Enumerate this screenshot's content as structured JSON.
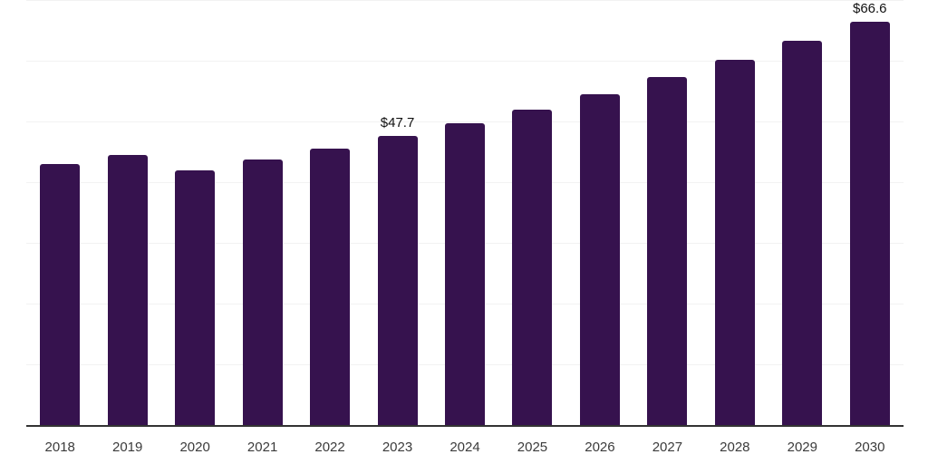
{
  "chart_data": {
    "type": "bar",
    "title": "",
    "xlabel": "",
    "ylabel": "",
    "categories": [
      "2018",
      "2019",
      "2020",
      "2021",
      "2022",
      "2023",
      "2024",
      "2025",
      "2026",
      "2027",
      "2028",
      "2029",
      "2030"
    ],
    "values": [
      43.1,
      44.7,
      42.1,
      43.9,
      45.7,
      47.7,
      49.9,
      52.1,
      54.7,
      57.5,
      60.3,
      63.5,
      66.6
    ],
    "data_labels": {
      "2023": "$47.7",
      "2030": "$66.6"
    },
    "ylim": [
      0,
      70
    ],
    "gridline_step": 10,
    "grid": true,
    "legend": "none",
    "colors": {
      "bar": "#36124e",
      "axis": "#333333",
      "grid": "#f2f2f2",
      "tick_label": "#3b3b3b",
      "data_label": "#111111"
    }
  }
}
